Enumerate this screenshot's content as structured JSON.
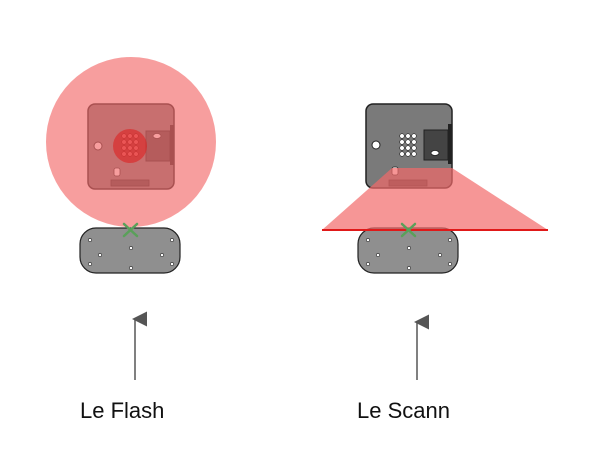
{
  "diagram": {
    "panels": [
      {
        "id": "flash",
        "caption": "Le Flash"
      },
      {
        "id": "scan",
        "caption": "Le Scann"
      }
    ],
    "colors": {
      "beam_fill": "#f48a8a",
      "beam_line": "#e01919",
      "device_body": "#7a7a7a",
      "device_outline": "#222222",
      "module_dark": "#444444",
      "base_fill": "#8f8f8f",
      "marker": "#5aa05a",
      "arrow": "#555555"
    },
    "icons": [
      "cross-marker-icon",
      "arrow-up-icon"
    ]
  }
}
